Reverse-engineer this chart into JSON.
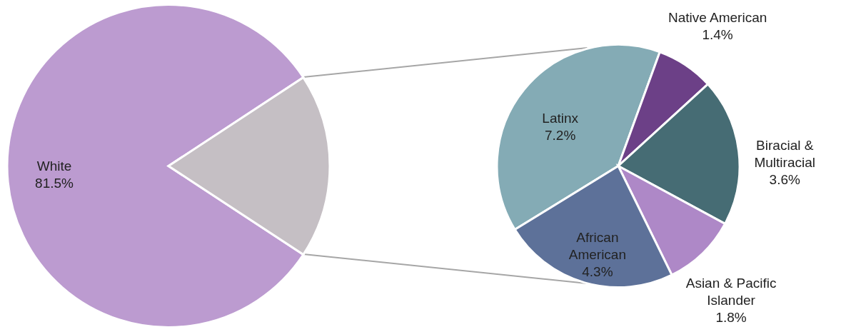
{
  "chart_data": [
    {
      "type": "pie",
      "categories": [
        "White",
        null
      ],
      "values": [
        81.5,
        18.5
      ],
      "colors": [
        "#bc9bd0",
        "#c5bfc4"
      ],
      "value_labels": [
        "81.5%",
        null
      ],
      "legend": false
    },
    {
      "type": "pie",
      "categories": [
        "Latinx",
        "Native American",
        "Biracial & Multiracial",
        "Asian & Pacific Islander",
        "African American"
      ],
      "values": [
        7.2,
        1.4,
        3.6,
        1.8,
        4.3
      ],
      "colors": [
        "#84abb5",
        "#6c4087",
        "#466c74",
        "#ae88c7",
        "#5d7199"
      ],
      "value_labels": [
        "7.2%",
        "1.4%",
        "3.6%",
        "1.8%",
        "4.3%"
      ],
      "legend": false
    }
  ]
}
